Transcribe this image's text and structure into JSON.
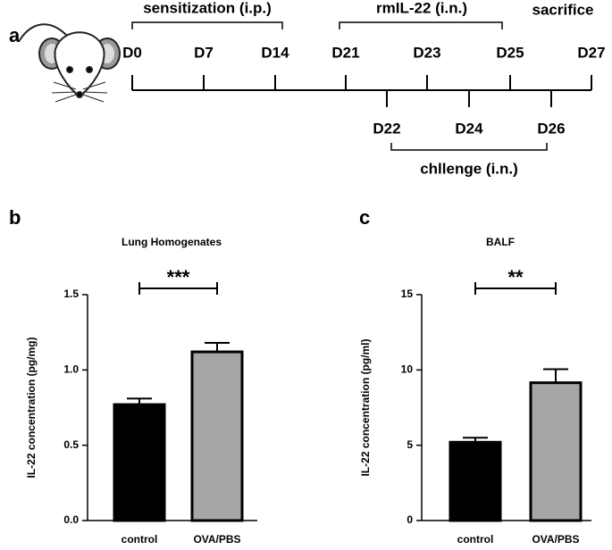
{
  "timeline": {
    "panel": "a",
    "top_days": [
      "D0",
      "D7",
      "D14",
      "D21",
      "D23",
      "D25",
      "D27"
    ],
    "bottom_days": [
      "D22",
      "D24",
      "D26"
    ],
    "phases": [
      "sensitization (i.p.)",
      "rmIL-22 (i.n.)",
      "sacrifice",
      "chllenge (i.n.)"
    ]
  },
  "chart_data": [
    {
      "type": "bar",
      "panel": "b",
      "title": "Lung Homogenates",
      "y_label": "IL-22 concentration (pg/mg)",
      "categories": [
        "control",
        "OVA/PBS"
      ],
      "values": [
        0.77,
        1.12
      ],
      "errors": [
        0.04,
        0.06
      ],
      "colors": [
        "#000000",
        "#a6a6a6"
      ],
      "ylim": [
        0,
        1.5
      ],
      "yticks": [
        {
          "value": 0,
          "label": "0.0"
        },
        0.5,
        {
          "value": 1,
          "label": "1.0"
        },
        1.5
      ],
      "significance": "***"
    },
    {
      "type": "bar",
      "panel": "c",
      "title": "BALF",
      "y_label": "IL-22 concentration (pg/ml)",
      "categories": [
        "control",
        "OVA/PBS"
      ],
      "values": [
        5.2,
        9.15
      ],
      "errors": [
        0.3,
        0.9
      ],
      "colors": [
        "#000000",
        "#a6a6a6"
      ],
      "ylim": [
        0,
        15
      ],
      "yticks": [
        0,
        5,
        10,
        15
      ],
      "significance": "**"
    }
  ]
}
